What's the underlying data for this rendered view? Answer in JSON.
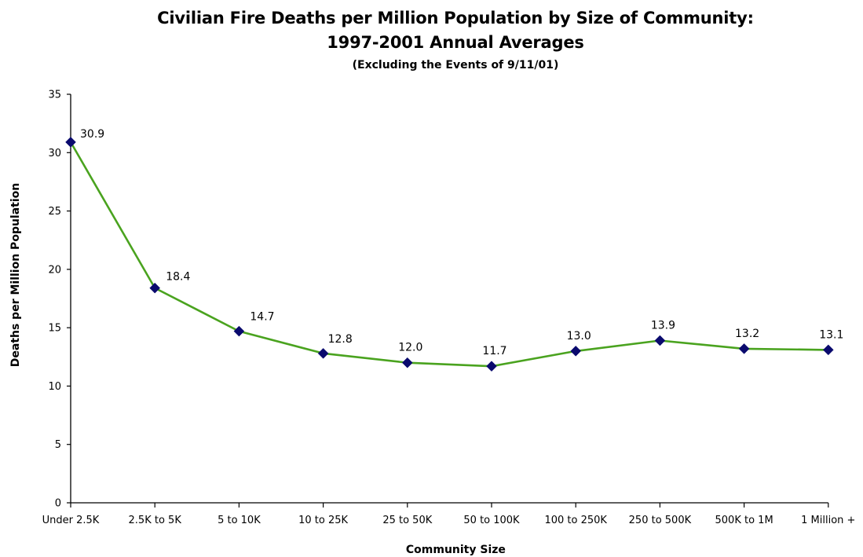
{
  "chart_data": {
    "type": "line",
    "title_line1": "Civilian Fire Deaths per Million Population by Size of Community:",
    "title_line2": "1997-2001 Annual Averages",
    "subtitle": "(Excluding the Events of 9/11/01)",
    "xlabel": "Community Size",
    "ylabel": "Deaths per Million Population",
    "categories": [
      "Under 2.5K",
      "2.5K to 5K",
      "5 to 10K",
      "10 to 25K",
      "25 to 50K",
      "50 to 100K",
      "100 to 250K",
      "250 to 500K",
      "500K to 1M",
      "1 Million +"
    ],
    "series": [
      {
        "values": [
          30.9,
          18.4,
          14.7,
          12.8,
          12.0,
          11.7,
          13.0,
          13.9,
          13.2,
          13.1
        ],
        "labels": [
          "30.9",
          "18.4",
          "14.7",
          "12.8",
          "12.0",
          "11.7",
          "13.0",
          "13.9",
          "13.2",
          "13.1"
        ]
      }
    ],
    "ylim": [
      0,
      35
    ],
    "yticks": [
      0,
      5,
      10,
      15,
      20,
      25,
      30,
      35
    ],
    "grid": false,
    "legend": "none",
    "line_color": "#4aa31f",
    "marker_color": "#0a0a6e",
    "marker": "diamond"
  }
}
